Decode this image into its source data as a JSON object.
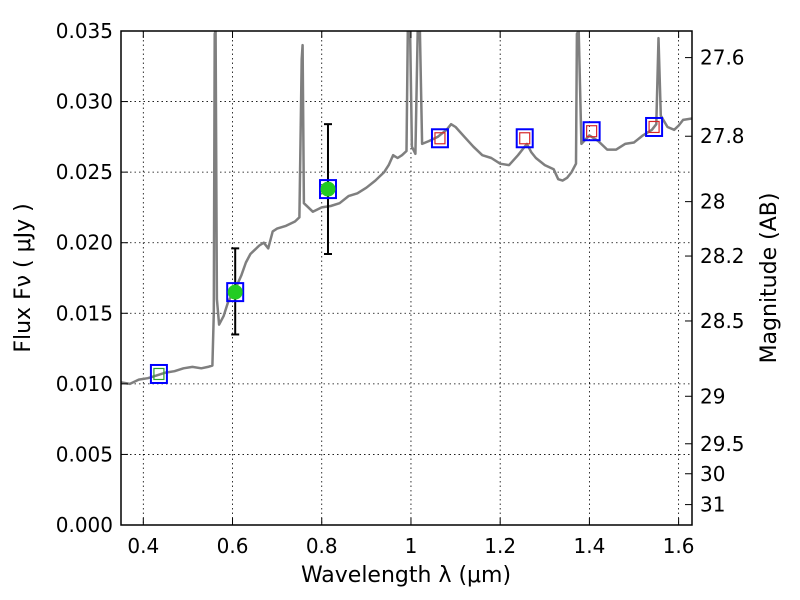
{
  "chart_data": {
    "type": "line",
    "xlabel": "Wavelength  λ (μm)",
    "ylabel": "Flux  Fν  ( μJy )",
    "y2label": "Magnitude (AB)",
    "xlim": [
      0.35,
      1.63
    ],
    "ylim": [
      0.0,
      0.035
    ],
    "grid": true,
    "x_ticks": [
      {
        "value": 0.4,
        "label": "0.4"
      },
      {
        "value": 0.6,
        "label": "0.6"
      },
      {
        "value": 0.8,
        "label": "0.8"
      },
      {
        "value": 1.0,
        "label": "1"
      },
      {
        "value": 1.2,
        "label": "1.2"
      },
      {
        "value": 1.4,
        "label": "1.4"
      },
      {
        "value": 1.6,
        "label": "1.6"
      }
    ],
    "y_ticks": [
      {
        "value": 0.0,
        "label": "0.000"
      },
      {
        "value": 0.005,
        "label": "0.005"
      },
      {
        "value": 0.01,
        "label": "0.010"
      },
      {
        "value": 0.015,
        "label": "0.015"
      },
      {
        "value": 0.02,
        "label": "0.020"
      },
      {
        "value": 0.025,
        "label": "0.025"
      },
      {
        "value": 0.03,
        "label": "0.030"
      },
      {
        "value": 0.035,
        "label": "0.035"
      }
    ],
    "mag_ticks": [
      "27.6",
      "27.8",
      "28",
      "28.2",
      "28.5",
      "29",
      "29.5",
      "30",
      "31"
    ],
    "spectrum_color": "#7f7f7f",
    "spectrum": [
      [
        0.35,
        0.0101
      ],
      [
        0.37,
        0.01
      ],
      [
        0.39,
        0.0103
      ],
      [
        0.41,
        0.0104
      ],
      [
        0.43,
        0.0106
      ],
      [
        0.45,
        0.0108
      ],
      [
        0.47,
        0.0109
      ],
      [
        0.49,
        0.0111
      ],
      [
        0.51,
        0.0112
      ],
      [
        0.53,
        0.0111
      ],
      [
        0.545,
        0.0112
      ],
      [
        0.555,
        0.0113
      ],
      [
        0.558,
        0.015
      ],
      [
        0.56,
        0.0348
      ],
      [
        0.562,
        0.035
      ],
      [
        0.565,
        0.016
      ],
      [
        0.57,
        0.0142
      ],
      [
        0.58,
        0.0148
      ],
      [
        0.59,
        0.0158
      ],
      [
        0.6,
        0.0164
      ],
      [
        0.61,
        0.017
      ],
      [
        0.62,
        0.0177
      ],
      [
        0.63,
        0.0186
      ],
      [
        0.64,
        0.0192
      ],
      [
        0.65,
        0.0195
      ],
      [
        0.66,
        0.0198
      ],
      [
        0.67,
        0.02
      ],
      [
        0.68,
        0.0196
      ],
      [
        0.69,
        0.0208
      ],
      [
        0.7,
        0.021
      ],
      [
        0.72,
        0.0212
      ],
      [
        0.74,
        0.0215
      ],
      [
        0.75,
        0.0218
      ],
      [
        0.755,
        0.033
      ],
      [
        0.757,
        0.034
      ],
      [
        0.76,
        0.0228
      ],
      [
        0.78,
        0.0222
      ],
      [
        0.8,
        0.0225
      ],
      [
        0.82,
        0.0226
      ],
      [
        0.84,
        0.0228
      ],
      [
        0.86,
        0.0233
      ],
      [
        0.88,
        0.0235
      ],
      [
        0.9,
        0.0239
      ],
      [
        0.92,
        0.0244
      ],
      [
        0.94,
        0.025
      ],
      [
        0.95,
        0.0255
      ],
      [
        0.96,
        0.0262
      ],
      [
        0.97,
        0.026
      ],
      [
        0.98,
        0.0262
      ],
      [
        0.99,
        0.0265
      ],
      [
        0.993,
        0.035
      ],
      [
        0.998,
        0.035
      ],
      [
        1.002,
        0.0268
      ],
      [
        1.01,
        0.0263
      ],
      [
        1.015,
        0.035
      ],
      [
        1.02,
        0.035
      ],
      [
        1.025,
        0.027
      ],
      [
        1.04,
        0.0272
      ],
      [
        1.06,
        0.0275
      ],
      [
        1.08,
        0.028
      ],
      [
        1.09,
        0.0284
      ],
      [
        1.1,
        0.0282
      ],
      [
        1.12,
        0.0275
      ],
      [
        1.14,
        0.0268
      ],
      [
        1.16,
        0.0262
      ],
      [
        1.18,
        0.026
      ],
      [
        1.2,
        0.0256
      ],
      [
        1.22,
        0.0255
      ],
      [
        1.24,
        0.0262
      ],
      [
        1.26,
        0.027
      ],
      [
        1.27,
        0.0264
      ],
      [
        1.28,
        0.026
      ],
      [
        1.3,
        0.0255
      ],
      [
        1.32,
        0.0252
      ],
      [
        1.33,
        0.0245
      ],
      [
        1.34,
        0.0244
      ],
      [
        1.35,
        0.0246
      ],
      [
        1.36,
        0.025
      ],
      [
        1.37,
        0.0256
      ],
      [
        1.372,
        0.0348
      ],
      [
        1.376,
        0.035
      ],
      [
        1.382,
        0.027
      ],
      [
        1.4,
        0.0276
      ],
      [
        1.42,
        0.0272
      ],
      [
        1.44,
        0.0266
      ],
      [
        1.46,
        0.0266
      ],
      [
        1.48,
        0.027
      ],
      [
        1.5,
        0.0271
      ],
      [
        1.52,
        0.0276
      ],
      [
        1.54,
        0.028
      ],
      [
        1.55,
        0.0284
      ],
      [
        1.555,
        0.0345
      ],
      [
        1.56,
        0.029
      ],
      [
        1.575,
        0.0282
      ],
      [
        1.59,
        0.028
      ],
      [
        1.6,
        0.0283
      ],
      [
        1.61,
        0.0287
      ],
      [
        1.63,
        0.0288
      ]
    ],
    "photometry_open_squares": [
      {
        "x": 0.435,
        "y": 0.0107,
        "inner_color": "#2ca02c"
      },
      {
        "x": 1.065,
        "y": 0.0274,
        "inner_color": "#d62728"
      },
      {
        "x": 1.255,
        "y": 0.0274,
        "inner_color": "#d62728"
      },
      {
        "x": 1.405,
        "y": 0.0279,
        "inner_color": "#d62728"
      },
      {
        "x": 1.545,
        "y": 0.0282,
        "inner_color": "#d62728"
      }
    ],
    "photometry_filled": [
      {
        "x": 0.606,
        "y": 0.0165,
        "ylow": 0.0135,
        "yhigh": 0.0196
      },
      {
        "x": 0.814,
        "y": 0.0238,
        "ylow": 0.0192,
        "yhigh": 0.0284
      }
    ],
    "square_color": "#0000ff",
    "filled_color": "#22cc22"
  }
}
